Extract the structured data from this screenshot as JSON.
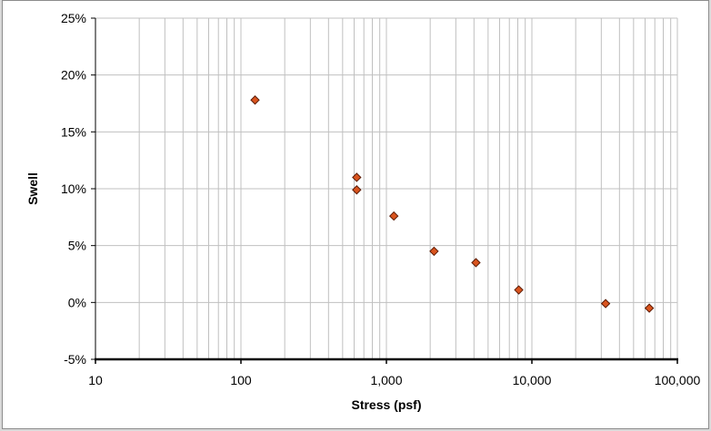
{
  "chart_data": {
    "type": "scatter",
    "title": "",
    "xlabel": "Stress (psf)",
    "ylabel": "Swell",
    "x_scale": "log",
    "xlim": [
      10,
      100000
    ],
    "ylim": [
      -0.05,
      0.25
    ],
    "grid": true,
    "legend": "none",
    "x_ticks": [
      {
        "value": 10,
        "label": "10"
      },
      {
        "value": 100,
        "label": "100"
      },
      {
        "value": 1000,
        "label": "1,000"
      },
      {
        "value": 10000,
        "label": "10,000"
      },
      {
        "value": 100000,
        "label": "100,000"
      }
    ],
    "y_ticks": [
      {
        "value": -0.05,
        "label": "-5%"
      },
      {
        "value": 0,
        "label": "0%"
      },
      {
        "value": 0.05,
        "label": "5%"
      },
      {
        "value": 0.1,
        "label": "10%"
      },
      {
        "value": 0.15,
        "label": "15%"
      },
      {
        "value": 0.2,
        "label": "20%"
      },
      {
        "value": 0.25,
        "label": "25%"
      }
    ],
    "series": [
      {
        "marker": "diamond",
        "color": "#d9541e",
        "edge_color": "#5a1a05",
        "points": [
          {
            "x": 125,
            "y": 0.178
          },
          {
            "x": 625,
            "y": 0.11
          },
          {
            "x": 625,
            "y": 0.099
          },
          {
            "x": 1125,
            "y": 0.076
          },
          {
            "x": 2125,
            "y": 0.045
          },
          {
            "x": 4125,
            "y": 0.035
          },
          {
            "x": 8125,
            "y": 0.011
          },
          {
            "x": 32125,
            "y": -0.001
          },
          {
            "x": 64125,
            "y": -0.005
          }
        ]
      }
    ]
  },
  "colors": {
    "background": "#ffffff",
    "outer_background": "#d9d9d9",
    "grid": "#c0c0c0",
    "axis": "#000000"
  }
}
